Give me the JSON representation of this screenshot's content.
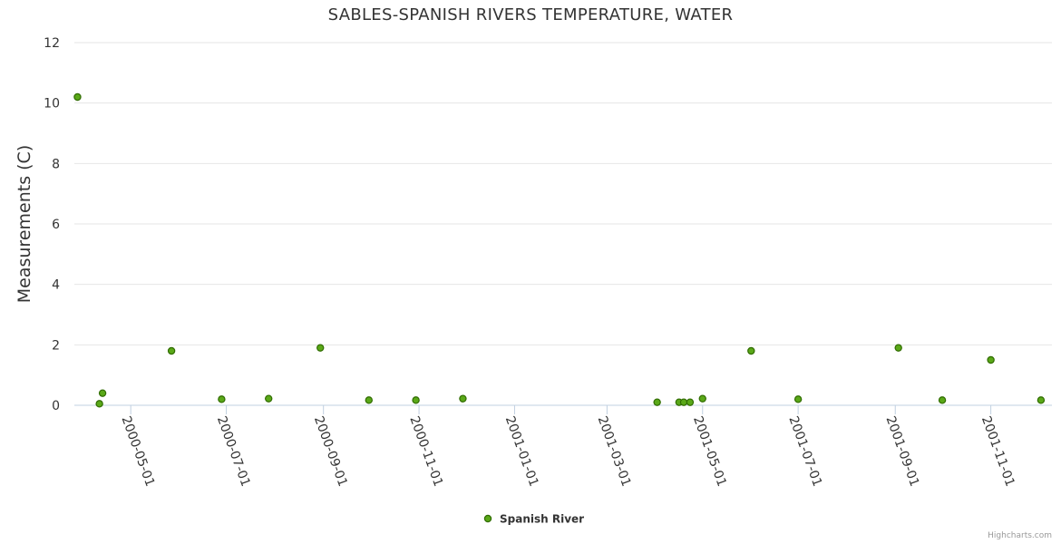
{
  "chart_data": {
    "type": "scatter",
    "title": "SABLES-SPANISH RIVERS TEMPERATURE, WATER",
    "xlabel": "",
    "ylabel": "Measurements (C)",
    "ylim": [
      0,
      12
    ],
    "yticks": [
      0,
      2,
      4,
      6,
      8,
      10,
      12
    ],
    "xlim": [
      "2000-03-26",
      "2001-12-10"
    ],
    "xticks": [
      "2000-05-01",
      "2000-07-01",
      "2000-09-01",
      "2000-11-01",
      "2001-01-01",
      "2001-03-01",
      "2001-05-01",
      "2001-07-01",
      "2001-09-01",
      "2001-11-01"
    ],
    "grid": "horizontal",
    "legend_position": "bottom-center",
    "series": [
      {
        "name": "Spanish River",
        "color": "#5aa818",
        "points": [
          {
            "x": "2000-03-28",
            "y": 10.2
          },
          {
            "x": "2000-04-11",
            "y": 0.05
          },
          {
            "x": "2000-04-13",
            "y": 0.4
          },
          {
            "x": "2000-05-27",
            "y": 1.8
          },
          {
            "x": "2000-06-28",
            "y": 0.2
          },
          {
            "x": "2000-07-28",
            "y": 0.22
          },
          {
            "x": "2000-08-30",
            "y": 1.9
          },
          {
            "x": "2000-09-30",
            "y": 0.17
          },
          {
            "x": "2000-10-30",
            "y": 0.17
          },
          {
            "x": "2000-11-29",
            "y": 0.22
          },
          {
            "x": "2001-04-02",
            "y": 0.1
          },
          {
            "x": "2001-04-16",
            "y": 0.1
          },
          {
            "x": "2001-04-19",
            "y": 0.1
          },
          {
            "x": "2001-04-23",
            "y": 0.1
          },
          {
            "x": "2001-05-01",
            "y": 0.22
          },
          {
            "x": "2001-06-01",
            "y": 1.8
          },
          {
            "x": "2001-07-01",
            "y": 0.2
          },
          {
            "x": "2001-09-03",
            "y": 1.9
          },
          {
            "x": "2001-10-01",
            "y": 0.17
          },
          {
            "x": "2001-11-01",
            "y": 1.5
          },
          {
            "x": "2001-12-03",
            "y": 0.17
          }
        ]
      }
    ]
  },
  "credits": "Highcharts.com"
}
